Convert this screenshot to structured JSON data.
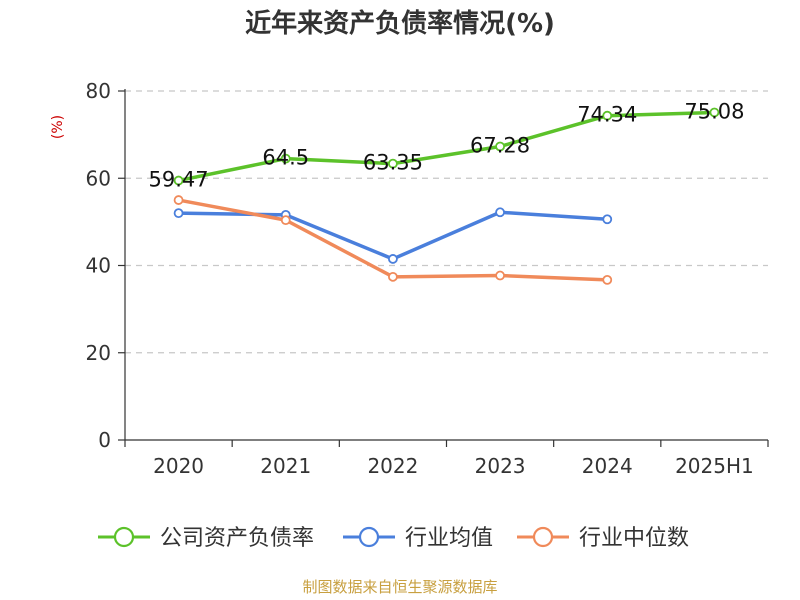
{
  "chart_data": {
    "type": "line",
    "title": "近年来资产负债率情况(%)",
    "ylabel": "(%)",
    "xlabel": "",
    "categories": [
      "2020",
      "2021",
      "2022",
      "2023",
      "2024",
      "2025H1"
    ],
    "ylim": [
      0,
      80
    ],
    "yticks": [
      0,
      20,
      40,
      60,
      80
    ],
    "grid": true,
    "legend_position": "bottom",
    "series": [
      {
        "name": "公司资产负债率",
        "color": "#5cc22a",
        "values": [
          59.47,
          64.5,
          63.35,
          67.28,
          74.34,
          75.08
        ],
        "labels": [
          "59.47",
          "64.5",
          "63.35",
          "67.28",
          "74.34",
          "75.08"
        ]
      },
      {
        "name": "行业均值",
        "color": "#4a7fdc",
        "values": [
          52.0,
          51.6,
          41.5,
          52.2,
          50.6,
          null
        ]
      },
      {
        "name": "行业中位数",
        "color": "#f08a5a",
        "values": [
          55.0,
          50.4,
          37.4,
          37.7,
          36.7,
          null
        ]
      }
    ]
  },
  "source": "制图数据来自恒生聚源数据库"
}
